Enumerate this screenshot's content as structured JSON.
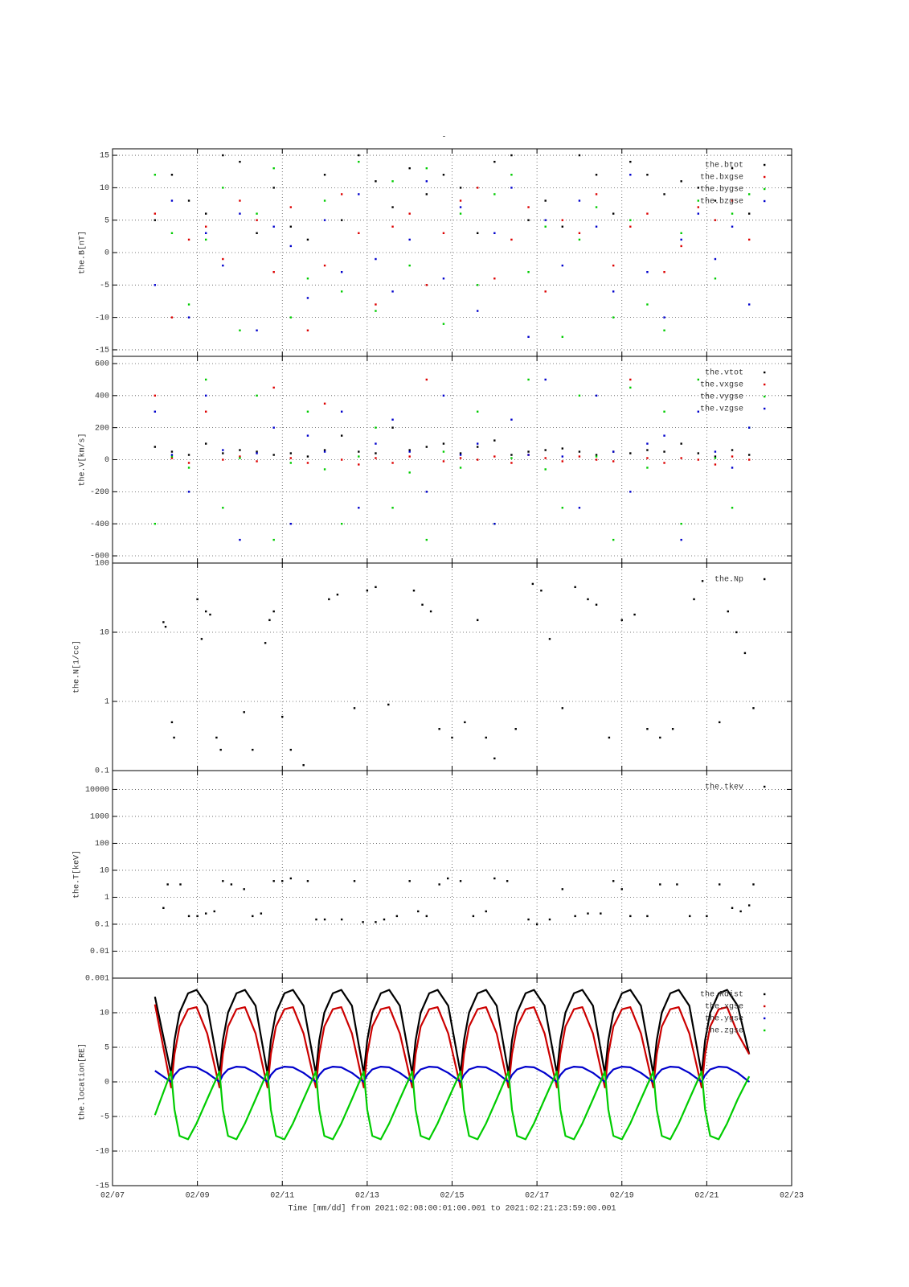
{
  "chart_data": [
    {
      "type": "scatter",
      "title": "-",
      "ylabel": "the.B[nT]",
      "legend": "upper right",
      "grid": true,
      "log_y": false,
      "xlim": [
        7,
        23
      ],
      "ylim": [
        -16,
        16
      ],
      "yticks": [
        -15,
        -10,
        -5,
        0,
        5,
        10,
        15
      ],
      "x": [
        8.0,
        8.4,
        8.8,
        9.2,
        9.6,
        10.0,
        10.4,
        10.8,
        11.2,
        11.6,
        12.0,
        12.4,
        12.8,
        13.2,
        13.6,
        14.0,
        14.4,
        14.8,
        15.2,
        15.6,
        16.0,
        16.4,
        16.8,
        17.2,
        17.6,
        18.0,
        18.4,
        18.8,
        19.2,
        19.6,
        20.0,
        20.4,
        20.8,
        21.2,
        21.6,
        22.0
      ],
      "series": [
        {
          "name": "the.btot",
          "color": "#000000",
          "values": [
            5,
            12,
            8,
            6,
            15,
            14,
            3,
            10,
            4,
            2,
            12,
            5,
            15,
            11,
            7,
            13,
            9,
            12,
            10,
            3,
            14,
            15,
            5,
            8,
            4,
            15,
            12,
            6,
            14,
            12,
            9,
            11,
            10,
            8,
            13,
            6
          ]
        },
        {
          "name": "the.bxgse",
          "color": "#dd0000",
          "values": [
            6,
            -10,
            2,
            4,
            -1,
            8,
            5,
            -3,
            7,
            -12,
            -2,
            9,
            3,
            -8,
            4,
            6,
            -5,
            3,
            8,
            10,
            -4,
            2,
            7,
            -6,
            5,
            3,
            9,
            -2,
            4,
            6,
            -3,
            1,
            7,
            5,
            8,
            2
          ]
        },
        {
          "name": "the.bygse",
          "color": "#00cc00",
          "values": [
            12,
            3,
            -8,
            2,
            10,
            -12,
            6,
            13,
            -10,
            -4,
            8,
            -6,
            14,
            -9,
            11,
            -2,
            13,
            -11,
            6,
            -5,
            9,
            12,
            -3,
            4,
            -13,
            2,
            7,
            -10,
            5,
            -8,
            -12,
            3,
            8,
            -4,
            6,
            9
          ]
        },
        {
          "name": "the.bzgse",
          "color": "#0000cc",
          "values": [
            -5,
            8,
            -10,
            3,
            -2,
            6,
            -12,
            4,
            1,
            -7,
            5,
            -3,
            9,
            -1,
            -6,
            2,
            11,
            -4,
            7,
            -9,
            3,
            10,
            -13,
            5,
            -2,
            8,
            4,
            -6,
            12,
            -3,
            -10,
            2,
            6,
            -1,
            4,
            -8
          ]
        }
      ]
    },
    {
      "type": "scatter",
      "ylabel": "the.V[km/s]",
      "legend": "upper right",
      "grid": true,
      "log_y": false,
      "xlim": [
        7,
        23
      ],
      "ylim": [
        -645,
        645
      ],
      "yticks": [
        -600,
        -400,
        -200,
        0,
        200,
        400,
        600
      ],
      "x": [
        8.0,
        8.4,
        8.8,
        9.2,
        9.6,
        10.0,
        10.4,
        10.8,
        11.2,
        11.6,
        12.0,
        12.4,
        12.8,
        13.2,
        13.6,
        14.0,
        14.4,
        14.8,
        15.2,
        15.6,
        16.0,
        16.4,
        16.8,
        17.2,
        17.6,
        18.0,
        18.4,
        18.8,
        19.2,
        19.6,
        20.0,
        20.4,
        20.8,
        21.2,
        21.6,
        22.0
      ],
      "series": [
        {
          "name": "the.vtot",
          "color": "#000000",
          "values": [
            80,
            50,
            30,
            100,
            40,
            60,
            50,
            30,
            40,
            20,
            60,
            150,
            50,
            40,
            200,
            60,
            80,
            100,
            40,
            80,
            120,
            30,
            50,
            60,
            70,
            50,
            30,
            50,
            40,
            60,
            50,
            100,
            40,
            20,
            60,
            30
          ]
        },
        {
          "name": "the.vxgse",
          "color": "#dd0000",
          "values": [
            400,
            10,
            -20,
            300,
            0,
            20,
            -10,
            450,
            10,
            -20,
            350,
            0,
            -30,
            10,
            -20,
            20,
            500,
            -10,
            10,
            0,
            20,
            -20,
            30,
            10,
            -10,
            20,
            0,
            -10,
            500,
            10,
            -20,
            10,
            0,
            -30,
            20,
            0
          ]
        },
        {
          "name": "the.vygse",
          "color": "#00cc00",
          "values": [
            -400,
            20,
            -50,
            500,
            -300,
            10,
            400,
            -500,
            -20,
            300,
            -60,
            -400,
            20,
            200,
            -300,
            -80,
            -500,
            50,
            -50,
            300,
            -400,
            10,
            500,
            -60,
            -300,
            400,
            20,
            -500,
            450,
            -50,
            300,
            -400,
            500,
            10,
            -300,
            200
          ]
        },
        {
          "name": "the.vzgse",
          "color": "#0000cc",
          "values": [
            300,
            30,
            -200,
            400,
            60,
            -500,
            40,
            200,
            -400,
            150,
            50,
            300,
            -300,
            100,
            250,
            50,
            -200,
            400,
            30,
            100,
            -400,
            250,
            30,
            500,
            20,
            -300,
            400,
            50,
            -200,
            100,
            150,
            -500,
            300,
            50,
            -50,
            200
          ]
        }
      ]
    },
    {
      "type": "scatter",
      "ylabel": "the.N[1/cc]",
      "legend": "upper right",
      "grid": true,
      "log_y": true,
      "xlim": [
        7,
        23
      ],
      "ylim": [
        0.1,
        100
      ],
      "yticks": [
        0.1,
        1,
        10,
        100
      ],
      "x": [
        8.2,
        8.25,
        8.4,
        8.45,
        9.0,
        9.1,
        9.2,
        9.3,
        9.45,
        9.55,
        10.1,
        10.3,
        10.6,
        10.7,
        10.8,
        11.0,
        11.2,
        11.5,
        12.1,
        12.3,
        12.7,
        13.0,
        13.2,
        13.5,
        14.1,
        14.3,
        14.5,
        14.7,
        15.0,
        15.3,
        15.6,
        15.8,
        16.0,
        16.5,
        16.9,
        17.1,
        17.3,
        17.6,
        17.9,
        18.2,
        18.4,
        18.7,
        19.0,
        19.3,
        19.6,
        19.9,
        20.2,
        20.7,
        20.9,
        21.3,
        21.5,
        21.7,
        21.9,
        22.1
      ],
      "series": [
        {
          "name": "the.Np",
          "color": "#000000",
          "values": [
            14,
            12,
            0.5,
            0.3,
            30,
            8,
            20,
            18,
            0.3,
            0.2,
            0.7,
            0.2,
            7,
            15,
            20,
            0.6,
            0.2,
            0.12,
            30,
            35,
            0.8,
            40,
            45,
            0.9,
            40,
            25,
            20,
            0.4,
            0.3,
            0.5,
            15,
            0.3,
            0.15,
            0.4,
            50,
            40,
            8,
            0.8,
            45,
            30,
            25,
            0.3,
            15,
            18,
            0.4,
            0.3,
            0.4,
            30,
            55,
            0.5,
            20,
            10,
            5,
            0.8
          ]
        }
      ]
    },
    {
      "type": "scatter",
      "ylabel": "the.T[keV]",
      "legend": "upper right",
      "grid": true,
      "log_y": true,
      "xlim": [
        7,
        23
      ],
      "ylim": [
        0.001,
        50000
      ],
      "yticks": [
        0.001,
        0.01,
        0.1,
        1,
        10,
        100,
        1000,
        10000
      ],
      "x": [
        8.2,
        8.3,
        8.6,
        8.8,
        9.0,
        9.2,
        9.4,
        9.6,
        9.8,
        10.1,
        10.3,
        10.5,
        10.8,
        11.0,
        11.2,
        11.6,
        11.8,
        12.0,
        12.4,
        12.7,
        12.9,
        13.2,
        13.4,
        13.7,
        14.0,
        14.2,
        14.4,
        14.7,
        14.9,
        15.2,
        15.5,
        15.8,
        16.0,
        16.3,
        16.8,
        17.0,
        17.3,
        17.6,
        17.9,
        18.2,
        18.5,
        18.8,
        19.0,
        19.2,
        19.6,
        19.9,
        20.3,
        20.6,
        21.0,
        21.3,
        21.6,
        21.8,
        22.0,
        22.1
      ],
      "series": [
        {
          "name": "the.tkev",
          "color": "#000000",
          "values": [
            0.4,
            3,
            3,
            0.2,
            0.2,
            0.25,
            0.3,
            4,
            3,
            2,
            0.2,
            0.25,
            4,
            4,
            5,
            4,
            0.15,
            0.15,
            0.15,
            4,
            0.12,
            0.12,
            0.15,
            0.2,
            4,
            0.3,
            0.2,
            3,
            5,
            4,
            0.2,
            0.3,
            5,
            4,
            0.15,
            0.1,
            0.15,
            2,
            0.2,
            0.25,
            0.25,
            4,
            2,
            0.2,
            0.2,
            3,
            3,
            0.2,
            0.2,
            3,
            0.4,
            0.3,
            0.5,
            3
          ]
        }
      ]
    },
    {
      "type": "line",
      "ylabel": "the.location[RE]",
      "xlabel": "Time [mm/dd]  from 2021:02:08:00:01:00.001  to  2021:02:21:23:59:00.001",
      "legend": "upper right",
      "grid": true,
      "log_y": false,
      "xlim": [
        7,
        23
      ],
      "ylim": [
        -15,
        15
      ],
      "yticks": [
        -15,
        -10,
        -5,
        0,
        5,
        10
      ],
      "xticks": [
        {
          "value": 7,
          "label": "02/07"
        },
        {
          "value": 9,
          "label": "02/09"
        },
        {
          "value": 11,
          "label": "02/11"
        },
        {
          "value": 13,
          "label": "02/13"
        },
        {
          "value": 15,
          "label": "02/15"
        },
        {
          "value": 17,
          "label": "02/17"
        },
        {
          "value": 19,
          "label": "02/19"
        },
        {
          "value": 21,
          "label": "02/21"
        },
        {
          "value": 23,
          "label": "02/23"
        }
      ],
      "x": [
        8.0,
        8.38,
        8.46,
        8.58,
        8.78,
        8.98,
        9.23,
        9.52,
        9.6,
        9.72,
        9.92,
        10.12,
        10.37,
        10.65,
        10.73,
        10.85,
        11.05,
        11.25,
        11.5,
        11.79,
        11.87,
        11.99,
        12.19,
        12.39,
        12.64,
        12.92,
        13.0,
        13.12,
        13.32,
        13.52,
        13.77,
        14.06,
        14.14,
        14.26,
        14.46,
        14.66,
        14.91,
        15.2,
        15.28,
        15.4,
        15.6,
        15.8,
        16.05,
        16.33,
        16.41,
        16.53,
        16.73,
        16.93,
        17.18,
        17.47,
        17.55,
        17.67,
        17.87,
        18.07,
        18.32,
        18.6,
        18.68,
        18.8,
        19.0,
        19.2,
        19.45,
        19.74,
        19.82,
        19.94,
        20.14,
        20.34,
        20.59,
        20.88,
        20.96,
        21.08,
        21.28,
        21.48,
        21.73,
        22.0
      ],
      "series": [
        {
          "name": "the.Rdist",
          "color": "#000000",
          "values": [
            12.3,
            1.2,
            6,
            10,
            12.8,
            13.3,
            11,
            1.2,
            6,
            10,
            12.8,
            13.3,
            11,
            1.2,
            6,
            10,
            12.8,
            13.3,
            11,
            1.2,
            6,
            10,
            12.8,
            13.3,
            11,
            1.2,
            6,
            10,
            12.8,
            13.3,
            11,
            1.2,
            6,
            10,
            12.8,
            13.3,
            11,
            1.2,
            6,
            10,
            12.8,
            13.3,
            11,
            1.2,
            6,
            10,
            12.8,
            13.3,
            11,
            1.2,
            6,
            10,
            12.8,
            13.3,
            11,
            1.2,
            6,
            10,
            12.8,
            13.3,
            11,
            1.2,
            6,
            10,
            12.8,
            13.3,
            11,
            1.2,
            6,
            10,
            12.8,
            13.3,
            11,
            4
          ]
        },
        {
          "name": "the.xgse",
          "color": "#cc0000",
          "values": [
            11.2,
            -0.8,
            4,
            8,
            10.5,
            10.8,
            7,
            -0.8,
            4,
            8,
            10.5,
            10.8,
            7,
            -0.8,
            4,
            8,
            10.5,
            10.8,
            7,
            -0.8,
            4,
            8,
            10.5,
            10.8,
            7,
            -0.8,
            4,
            8,
            10.5,
            10.8,
            7,
            -0.8,
            4,
            8,
            10.5,
            10.8,
            7,
            -0.8,
            4,
            8,
            10.5,
            10.8,
            7,
            -0.8,
            4,
            8,
            10.5,
            10.8,
            7,
            -0.8,
            4,
            8,
            10.5,
            10.8,
            7,
            -0.8,
            4,
            8,
            10.5,
            10.8,
            7,
            -0.8,
            4,
            8,
            10.5,
            10.8,
            7,
            -0.8,
            4,
            8,
            10.5,
            10.8,
            7,
            4
          ]
        },
        {
          "name": "the.ygse",
          "color": "#0000cc",
          "values": [
            1.6,
            0,
            1,
            1.8,
            2.2,
            2.1,
            1.3,
            0,
            1,
            1.8,
            2.2,
            2.1,
            1.3,
            0,
            1,
            1.8,
            2.2,
            2.1,
            1.3,
            0,
            1,
            1.8,
            2.2,
            2.1,
            1.3,
            0,
            1,
            1.8,
            2.2,
            2.1,
            1.3,
            0,
            1,
            1.8,
            2.2,
            2.1,
            1.3,
            0,
            1,
            1.8,
            2.2,
            2.1,
            1.3,
            0,
            1,
            1.8,
            2.2,
            2.1,
            1.3,
            0,
            1,
            1.8,
            2.2,
            2.1,
            1.3,
            0,
            1,
            1.8,
            2.2,
            2.1,
            1.3,
            0,
            1,
            1.8,
            2.2,
            2.1,
            1.3,
            0,
            1,
            1.8,
            2.2,
            2.1,
            1.3,
            0
          ]
        },
        {
          "name": "the.zgse",
          "color": "#00cc00",
          "values": [
            -4.8,
            1.5,
            -4,
            -7.8,
            -8.3,
            -6,
            -2.5,
            1.5,
            -4,
            -7.8,
            -8.3,
            -6,
            -2.5,
            1.5,
            -4,
            -7.8,
            -8.3,
            -6,
            -2.5,
            1.5,
            -4,
            -7.8,
            -8.3,
            -6,
            -2.5,
            1.5,
            -4,
            -7.8,
            -8.3,
            -6,
            -2.5,
            1.5,
            -4,
            -7.8,
            -8.3,
            -6,
            -2.5,
            1.5,
            -4,
            -7.8,
            -8.3,
            -6,
            -2.5,
            1.5,
            -4,
            -7.8,
            -8.3,
            -6,
            -2.5,
            1.5,
            -4,
            -7.8,
            -8.3,
            -6,
            -2.5,
            1.5,
            -4,
            -7.8,
            -8.3,
            -6,
            -2.5,
            1.5,
            -4,
            -7.8,
            -8.3,
            -6,
            -2.5,
            1.5,
            -4,
            -7.8,
            -8.3,
            -6,
            -2.5,
            0.8
          ]
        }
      ]
    }
  ]
}
